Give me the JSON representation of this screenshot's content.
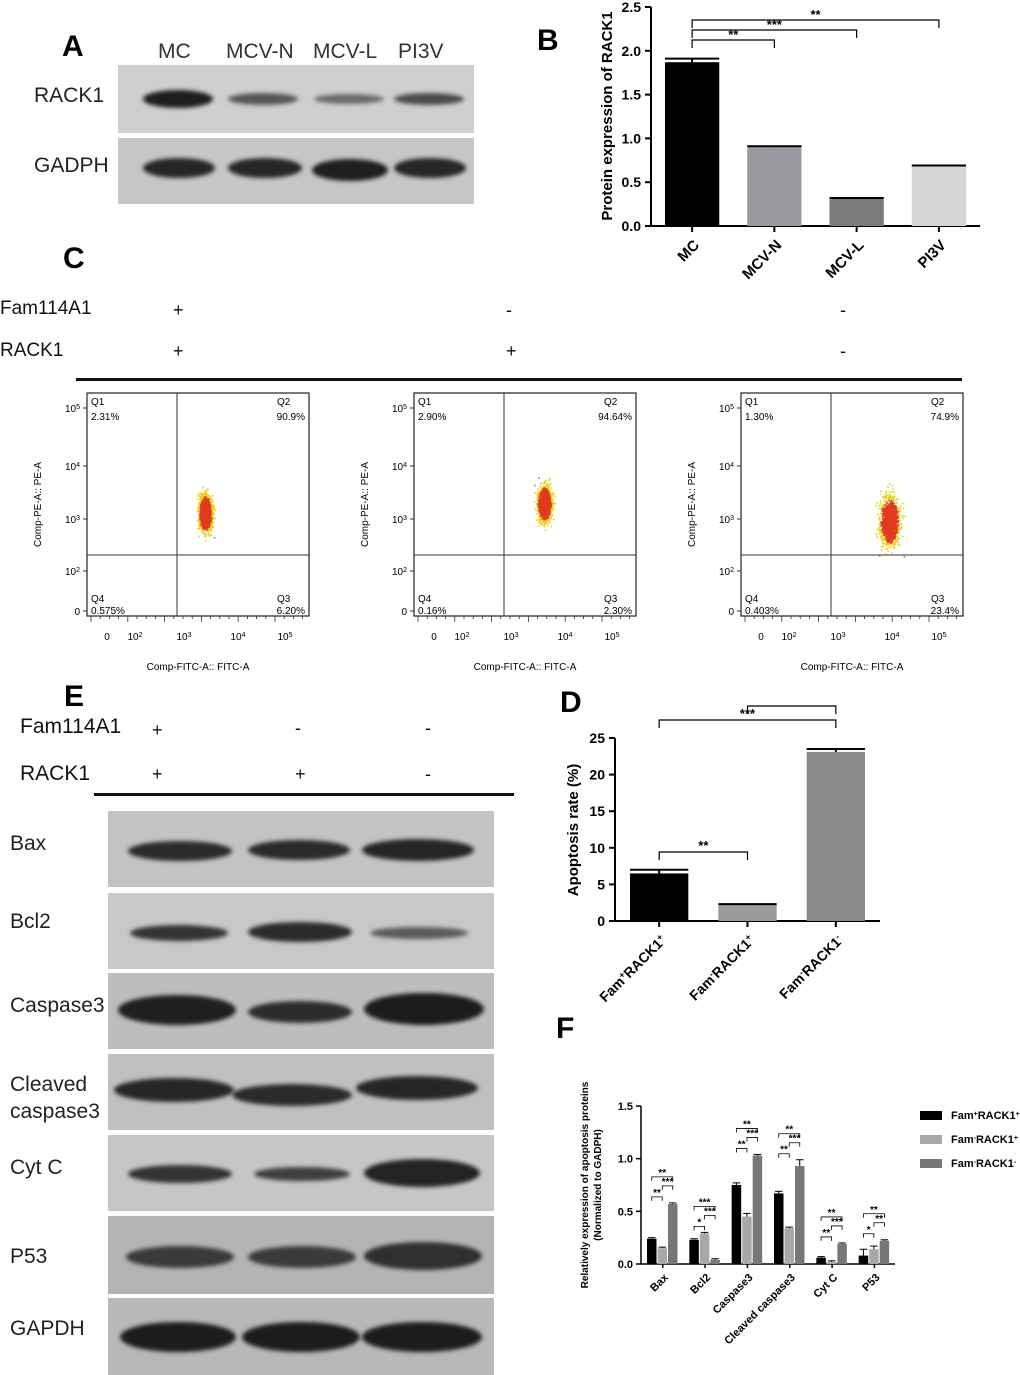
{
  "panels": {
    "a": {
      "letter": "A",
      "lanes": [
        "MC",
        "MCV-N",
        "MCV-L",
        "PI3V"
      ],
      "rows": [
        "RACK1",
        "GADPH"
      ]
    },
    "b": {
      "letter": "B"
    },
    "c": {
      "letter": "C",
      "factor1": "Fam114A1",
      "factor2": "RACK1",
      "signs1": [
        "+",
        "-",
        "-"
      ],
      "signs2": [
        "+",
        "+",
        "-"
      ],
      "plots": [
        {
          "q1_label": "Q1",
          "q1": "2.31%",
          "q2_label": "Q2",
          "q2": "90.9%",
          "q3_label": "Q3",
          "q3": "6.20%",
          "q4_label": "Q4",
          "q4": "0.575%"
        },
        {
          "q1_label": "Q1",
          "q1": "2.90%",
          "q2_label": "Q2",
          "q2": "94.64%",
          "q3_label": "Q3",
          "q3": "2.30%",
          "q4_label": "Q4",
          "q4": "0.16%"
        },
        {
          "q1_label": "Q1",
          "q1": "1.30%",
          "q2_label": "Q2",
          "q2": "74.9%",
          "q3_label": "Q3",
          "q3": "23.4%",
          "q4_label": "Q4",
          "q4": "0.403%"
        }
      ],
      "y_axis_label": "Comp-PE-A:: PE-A",
      "x_axis_label": "Comp-FITC-A:: FITC-A"
    },
    "d": {
      "letter": "D"
    },
    "e": {
      "letter": "E",
      "factor1": "Fam114A1",
      "factor2": "RACK1",
      "signs1": [
        "+",
        "-",
        "-"
      ],
      "signs2": [
        "+",
        "+",
        "-"
      ],
      "rows": [
        "Bax",
        "Bcl2",
        "Caspase3",
        "Cleaved caspase3",
        "Cyt C",
        "P53",
        "GAPDH"
      ]
    },
    "f": {
      "letter": "F"
    }
  },
  "chart_data": [
    {
      "id": "B",
      "type": "bar",
      "categories": [
        "MC",
        "MCV-N",
        "MCV-L",
        "PI3V"
      ],
      "values": [
        1.87,
        0.9,
        0.31,
        0.68
      ],
      "errors": [
        0.04,
        0.01,
        0.01,
        0.01
      ],
      "colors": [
        "#000000",
        "#9a9a9e",
        "#7a7a7a",
        "#d6d6d6"
      ],
      "ylabel": "Protein expression of RACK1",
      "ylim": [
        0,
        2.5
      ],
      "yticks": [
        "0.0",
        "0.5",
        "1.0",
        "1.5",
        "2.0",
        "2.5"
      ],
      "significance": [
        {
          "from": "MC",
          "to": "MCV-N",
          "label": "**"
        },
        {
          "from": "MC",
          "to": "MCV-L",
          "label": "***"
        },
        {
          "from": "MC",
          "to": "PI3V",
          "label": "**"
        }
      ]
    },
    {
      "id": "D",
      "type": "bar",
      "categories": [
        "Fam+RACK1+",
        "Fam-RACK1+",
        "Fam-RACK1-"
      ],
      "category_parts": [
        [
          "Fam",
          "+",
          "RACK1",
          "+"
        ],
        [
          "Fam",
          "-",
          "RACK1",
          "+"
        ],
        [
          "Fam",
          "-",
          "RACK1",
          "-"
        ]
      ],
      "values": [
        6.5,
        2.2,
        23.1
      ],
      "errors": [
        0.5,
        0.1,
        0.4
      ],
      "colors": [
        "#000000",
        "#9a9a9e",
        "#8a8a8a"
      ],
      "ylabel": "Apoptosis rate (%)",
      "ylim": [
        0,
        25
      ],
      "yticks": [
        "0",
        "5",
        "10",
        "15",
        "20",
        "25"
      ],
      "significance": [
        {
          "from": "Fam+RACK1+",
          "to": "Fam-RACK1+",
          "label": "**"
        },
        {
          "from": "Fam+RACK1+",
          "to": "Fam-RACK1-",
          "label": "***"
        },
        {
          "from": "Fam-RACK1+",
          "to": "Fam-RACK1-",
          "label": ""
        }
      ]
    },
    {
      "id": "F",
      "type": "bar",
      "categories": [
        "Bax",
        "Bcl2",
        "Caspase3",
        "Cleaved caspase3",
        "Cyt C",
        "P53"
      ],
      "series": [
        {
          "name": "Fam+RACK1+",
          "name_parts": [
            "Fam",
            "+",
            "RACK1",
            "+"
          ],
          "color": "#000000",
          "values": [
            0.24,
            0.23,
            0.75,
            0.67,
            0.06,
            0.08
          ],
          "errors": [
            0.01,
            0.01,
            0.02,
            0.02,
            0.01,
            0.06
          ]
        },
        {
          "name": "Fam-RACK1+",
          "name_parts": [
            "Fam",
            "-",
            "RACK1",
            "+"
          ],
          "color": "#a8a8a8",
          "values": [
            0.15,
            0.29,
            0.45,
            0.34,
            0.02,
            0.14
          ],
          "errors": [
            0.01,
            0.01,
            0.03,
            0.01,
            0.01,
            0.03
          ]
        },
        {
          "name": "Fam-RACK1-",
          "name_parts": [
            "Fam",
            "-",
            "RACK1",
            "-"
          ],
          "color": "#777777",
          "values": [
            0.57,
            0.04,
            1.03,
            0.93,
            0.19,
            0.22
          ],
          "errors": [
            0.01,
            0.01,
            0.01,
            0.06,
            0.01,
            0.01
          ]
        }
      ],
      "ylabel": "Relatively expression of apoptosis proteins",
      "ylabel2": "(Normalized to GADPH)",
      "ylim": [
        0,
        1.5
      ],
      "yticks": [
        "0.0",
        "0.5",
        "1.0",
        "1.5"
      ],
      "significance": [
        {
          "group": 0,
          "pairs": [
            [
              "**",
              0,
              1
            ],
            [
              "**",
              0,
              2
            ],
            [
              "***",
              1,
              2
            ]
          ]
        },
        {
          "group": 1,
          "pairs": [
            [
              "*",
              0,
              1
            ],
            [
              "***",
              0,
              2
            ],
            [
              "***",
              1,
              2
            ]
          ]
        },
        {
          "group": 2,
          "pairs": [
            [
              "**",
              0,
              1
            ],
            [
              "**",
              0,
              2
            ],
            [
              "***",
              1,
              2
            ]
          ]
        },
        {
          "group": 3,
          "pairs": [
            [
              "**",
              0,
              1
            ],
            [
              "**",
              0,
              2
            ],
            [
              "***",
              1,
              2
            ]
          ]
        },
        {
          "group": 4,
          "pairs": [
            [
              "**",
              0,
              1
            ],
            [
              "**",
              0,
              2
            ],
            [
              "***",
              1,
              2
            ]
          ]
        },
        {
          "group": 5,
          "pairs": [
            [
              "*",
              0,
              1
            ],
            [
              "**",
              0,
              2
            ],
            [
              "**",
              1,
              2
            ]
          ]
        }
      ]
    }
  ]
}
